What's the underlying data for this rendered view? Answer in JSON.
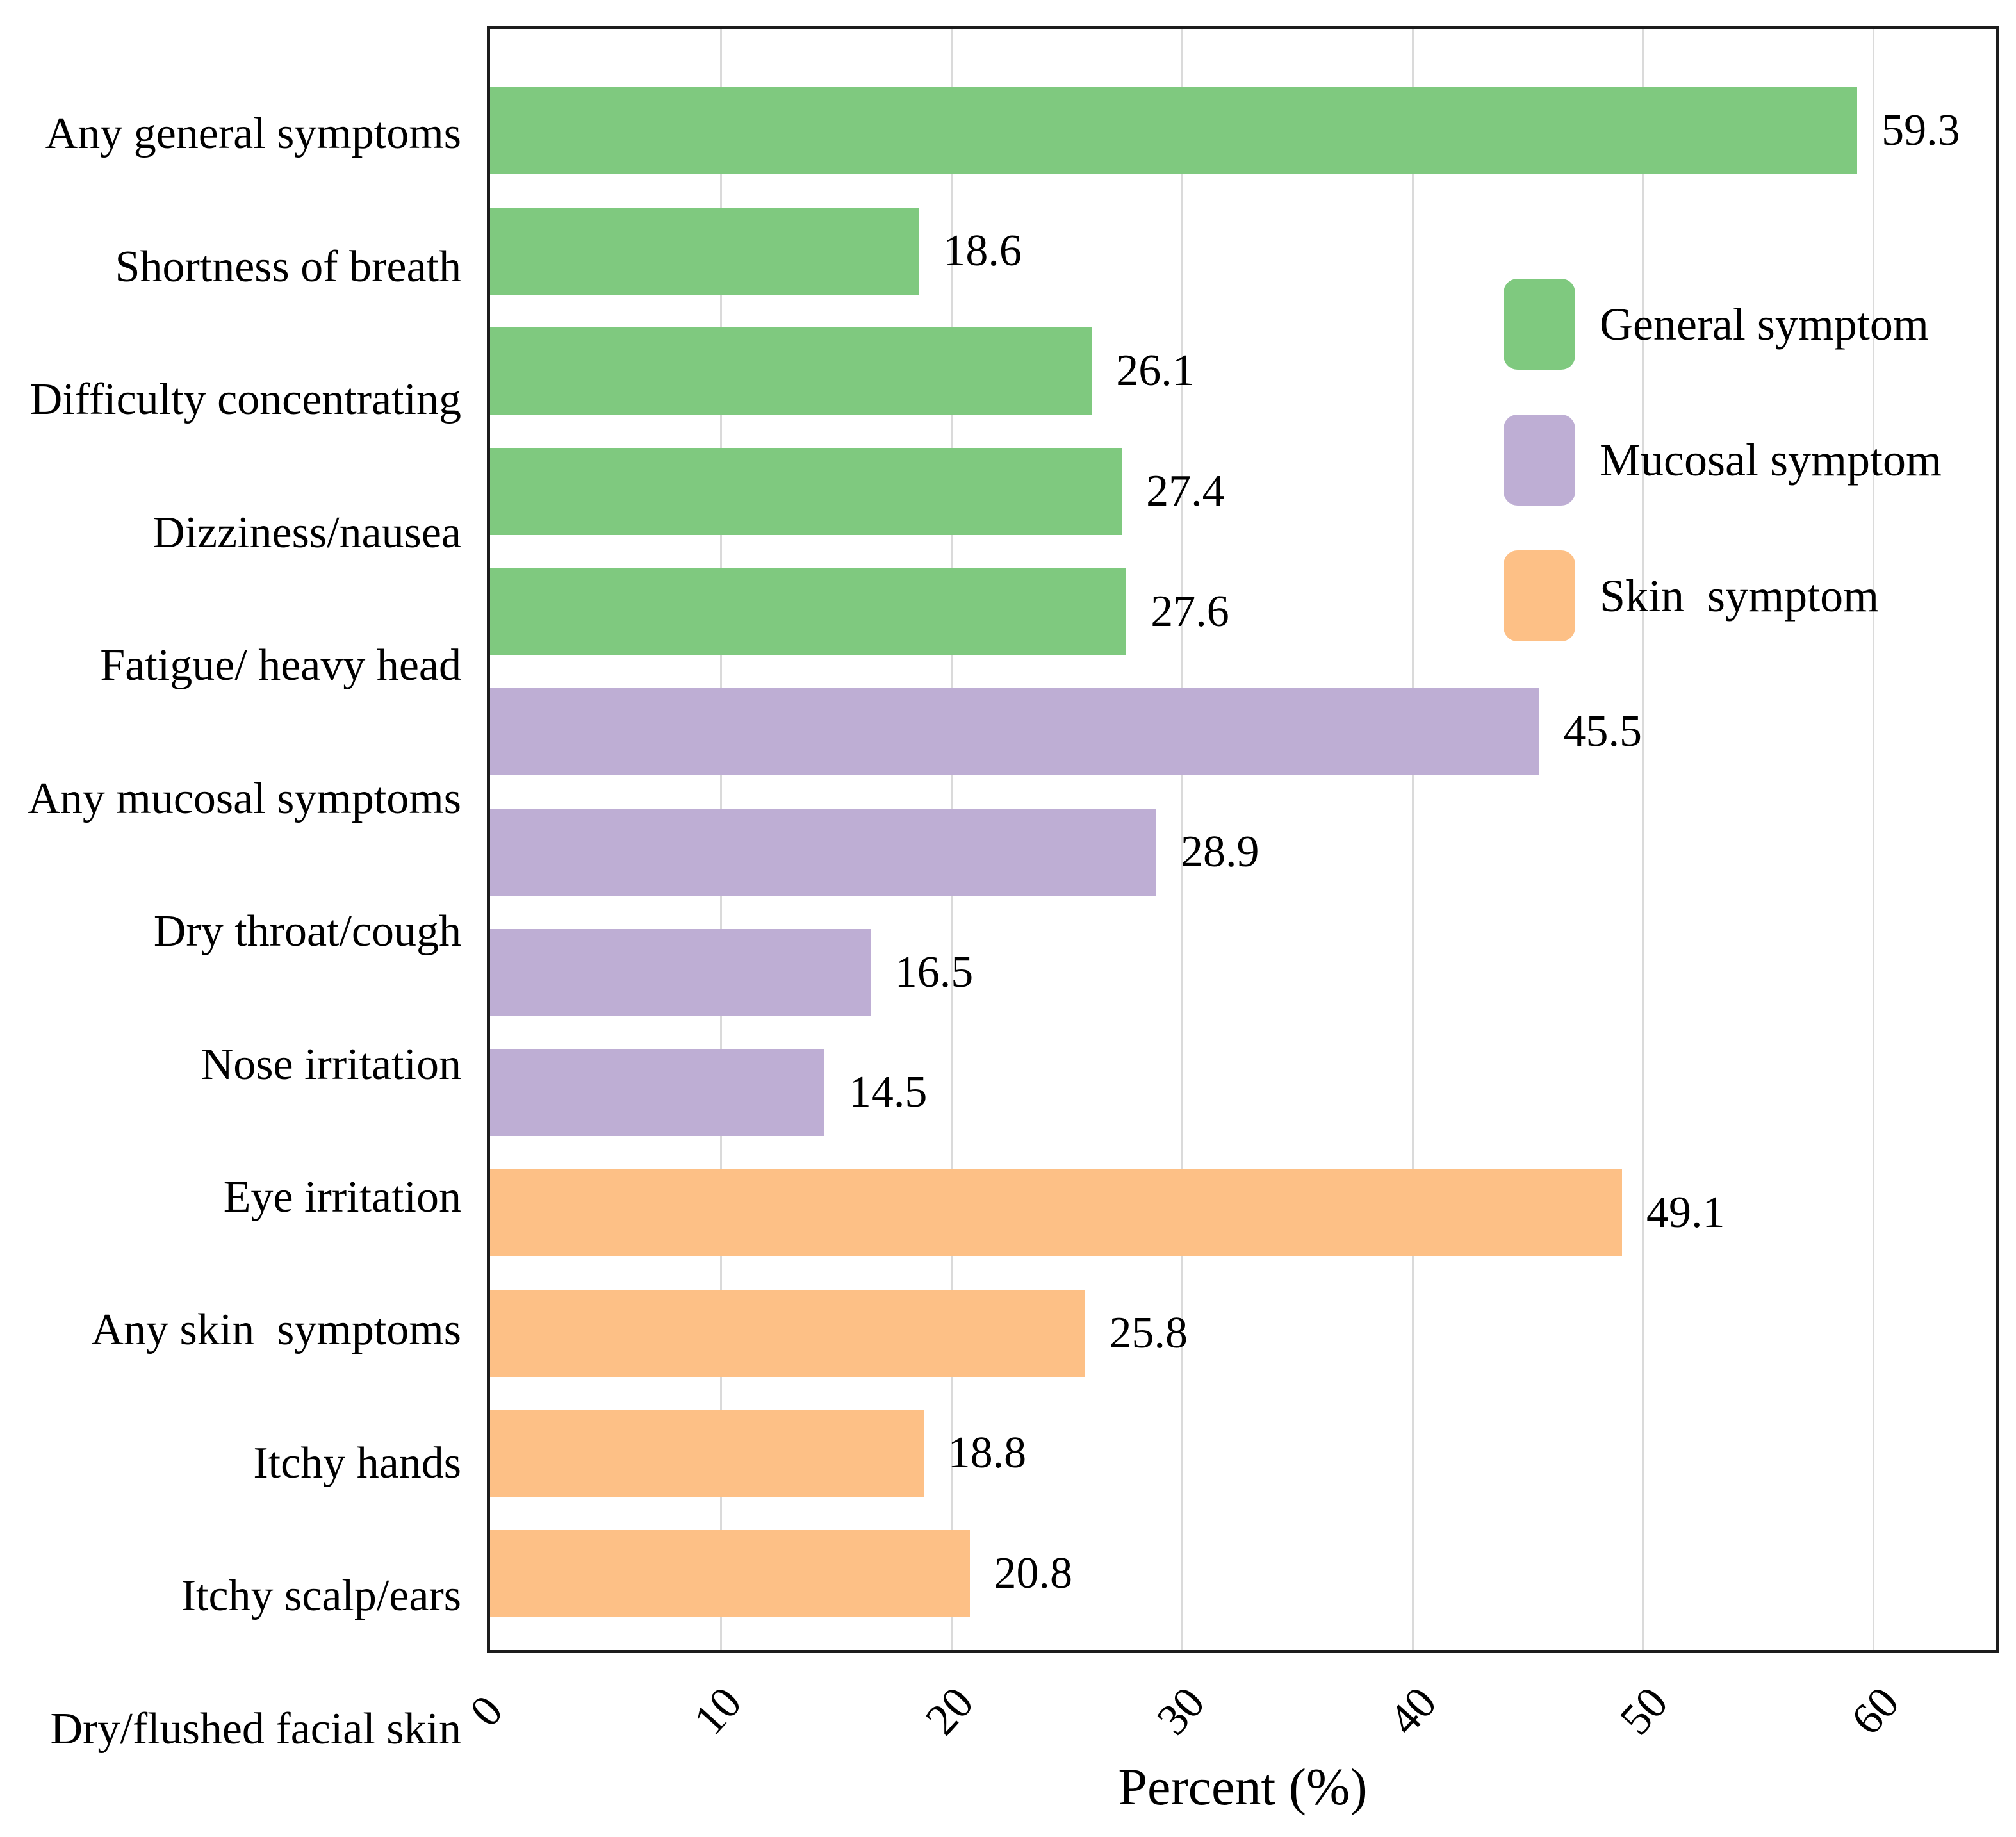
{
  "chart_data": {
    "type": "bar",
    "orientation": "horizontal",
    "title": "",
    "xlabel": "Percent (%)",
    "ylabel": "",
    "xlim": [
      0,
      65.3
    ],
    "xticks": [
      0,
      10,
      20,
      30,
      40,
      50,
      60
    ],
    "grid": "vertical gridlines at each 10 units, light gray, frame on",
    "legend_position": "upper right inside plot",
    "groups": [
      {
        "name": "General symptom",
        "color": "#7fc97f"
      },
      {
        "name": "Mucosal symptom",
        "color": "#beaed4"
      },
      {
        "name": "Skin  symptom",
        "color": "#fdc086"
      }
    ],
    "categories": [
      "Any general symptoms",
      "Shortness of breath",
      "Difficulty concentrating",
      "Dizziness/nausea",
      "Fatigue/ heavy head",
      "Any mucosal symptoms",
      "Dry throat/cough",
      "Nose irritation",
      "Eye irritation",
      "Any skin  symptoms",
      "Itchy hands",
      "Itchy scalp/ears",
      "Dry/flushed facial skin"
    ],
    "values": [
      59.3,
      18.6,
      26.1,
      27.4,
      27.6,
      45.5,
      28.9,
      16.5,
      14.5,
      49.1,
      25.8,
      18.8,
      20.8
    ],
    "value_labels": [
      "59.3",
      "18.6",
      "26.1",
      "27.4",
      "27.6",
      "45.5",
      "28.9",
      "16.5",
      "14.5",
      "49.1",
      "25.8",
      "18.8",
      "20.8"
    ],
    "bar_group_index": [
      0,
      0,
      0,
      0,
      0,
      1,
      1,
      1,
      1,
      2,
      2,
      2,
      2
    ]
  },
  "colors": {
    "frame": "#1c1c1c",
    "gridline": "#dadada",
    "background": "#ffffff",
    "text": "#000000"
  }
}
